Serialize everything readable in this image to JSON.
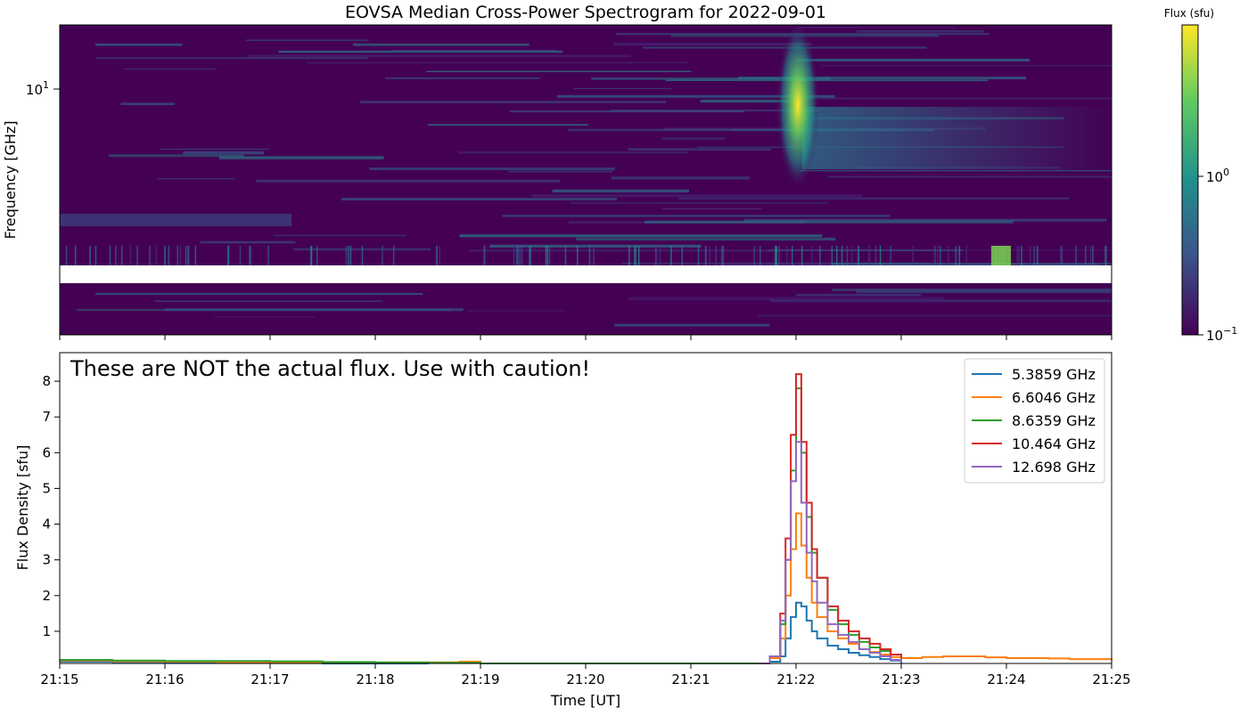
{
  "chart_data": [
    {
      "type": "heatmap",
      "title": "EOVSA Median Cross-Power Spectrogram for 2022-09-01",
      "ylabel": "Frequency [GHz]",
      "yscale": "log",
      "y_tick_labels": [
        "10^1"
      ],
      "x_tick_labels": [],
      "colorbar": {
        "label": "Flux (sfu)",
        "scale": "log",
        "tick_labels": [
          "10^0",
          "10^-1"
        ],
        "range": [
          0.1,
          8
        ],
        "colormap": "viridis"
      },
      "features": [
        {
          "time": "21:22",
          "description_value": "burst peak ~ 7.8 sfu across ~4-15 GHz"
        }
      ]
    },
    {
      "type": "line",
      "annotation": "These are NOT the actual flux. Use with caution!",
      "xlabel": "Time [UT]",
      "ylabel": "Flux Density [sfu]",
      "x_tick_labels": [
        "21:15",
        "21:16",
        "21:17",
        "21:18",
        "21:19",
        "21:20",
        "21:21",
        "21:22",
        "21:23",
        "21:24",
        "21:25"
      ],
      "y_ticks": [
        1,
        2,
        3,
        4,
        5,
        6,
        7,
        8
      ],
      "xlim": [
        "21:15",
        "21:25"
      ],
      "ylim": [
        0.1,
        8.8
      ],
      "legend_position": "top-right",
      "x_unit": "minutes after 21:00 UT",
      "series": [
        {
          "name": "5.3859 GHz",
          "color": "#1f77b4",
          "x": [
            15.0,
            15.5,
            16.0,
            16.5,
            17.0,
            17.5,
            18.0,
            18.5,
            19.0,
            19.1,
            21.65,
            21.75,
            21.85,
            21.9,
            21.95,
            22.0,
            22.05,
            22.1,
            22.15,
            22.2,
            22.3,
            22.4,
            22.5,
            22.6,
            22.7,
            22.8,
            22.9,
            23.0
          ],
          "values": [
            0.15,
            0.14,
            0.13,
            0.12,
            0.11,
            0.1,
            0.1,
            0.12,
            0.1,
            0.1,
            0.1,
            0.15,
            0.3,
            0.8,
            1.4,
            1.8,
            1.7,
            1.3,
            1.0,
            0.8,
            0.6,
            0.5,
            0.4,
            0.33,
            0.28,
            0.22,
            0.18,
            0.12
          ]
        },
        {
          "name": "6.6046 GHz",
          "color": "#ff7f0e",
          "x": [
            15.0,
            15.5,
            16.0,
            16.5,
            17.0,
            17.5,
            18.0,
            18.5,
            18.8,
            19.0,
            21.65,
            21.75,
            21.85,
            21.9,
            21.95,
            22.0,
            22.05,
            22.1,
            22.15,
            22.2,
            22.3,
            22.4,
            22.5,
            22.6,
            22.7,
            22.8,
            22.9,
            23.0,
            23.2,
            23.4,
            23.6,
            23.8,
            24.0,
            24.2,
            24.4,
            24.6,
            24.8,
            25.0
          ],
          "values": [
            0.18,
            0.16,
            0.15,
            0.14,
            0.13,
            0.12,
            0.12,
            0.13,
            0.15,
            0.1,
            0.1,
            0.25,
            0.8,
            2.0,
            3.3,
            4.3,
            3.4,
            2.5,
            1.8,
            1.4,
            1.0,
            0.8,
            0.65,
            0.5,
            0.42,
            0.35,
            0.28,
            0.25,
            0.28,
            0.3,
            0.3,
            0.27,
            0.25,
            0.25,
            0.24,
            0.22,
            0.22,
            0.2
          ]
        },
        {
          "name": "8.6359 GHz",
          "color": "#2ca02c",
          "x": [
            15.0,
            15.5,
            16.0,
            16.5,
            17.0,
            17.5,
            18.0,
            18.5,
            19.0,
            21.65,
            21.75,
            21.85,
            21.9,
            21.95,
            22.0,
            22.05,
            22.1,
            22.15,
            22.2,
            22.3,
            22.4,
            22.5,
            22.6,
            22.7,
            22.8,
            22.9,
            23.0
          ],
          "values": [
            0.2,
            0.18,
            0.17,
            0.17,
            0.16,
            0.14,
            0.13,
            0.12,
            0.1,
            0.1,
            0.3,
            1.2,
            3.0,
            5.5,
            7.8,
            6.0,
            4.2,
            3.2,
            2.5,
            1.6,
            1.2,
            0.9,
            0.7,
            0.55,
            0.45,
            0.35,
            0.25
          ]
        },
        {
          "name": "10.464 GHz",
          "color": "#d62728",
          "x": [
            21.65,
            21.75,
            21.85,
            21.9,
            21.95,
            22.0,
            22.05,
            22.1,
            22.15,
            22.2,
            22.3,
            22.4,
            22.5,
            22.6,
            22.7,
            22.8,
            22.9,
            23.0
          ],
          "values": [
            0.1,
            0.3,
            1.5,
            3.6,
            6.5,
            8.2,
            6.3,
            4.6,
            3.3,
            2.5,
            1.7,
            1.3,
            1.0,
            0.8,
            0.65,
            0.5,
            0.35,
            0.25
          ]
        },
        {
          "name": "12.698 GHz",
          "color": "#9467bd",
          "x": [
            21.65,
            21.75,
            21.85,
            21.9,
            21.95,
            22.0,
            22.05,
            22.1,
            22.15,
            22.2,
            22.3,
            22.4,
            22.5,
            22.6,
            22.7,
            22.8,
            22.9,
            23.0
          ],
          "values": [
            0.1,
            0.3,
            1.3,
            3.0,
            5.2,
            6.3,
            4.6,
            3.2,
            2.4,
            1.8,
            1.2,
            0.9,
            0.7,
            0.5,
            0.4,
            0.3,
            0.2,
            0.15
          ]
        }
      ]
    }
  ]
}
